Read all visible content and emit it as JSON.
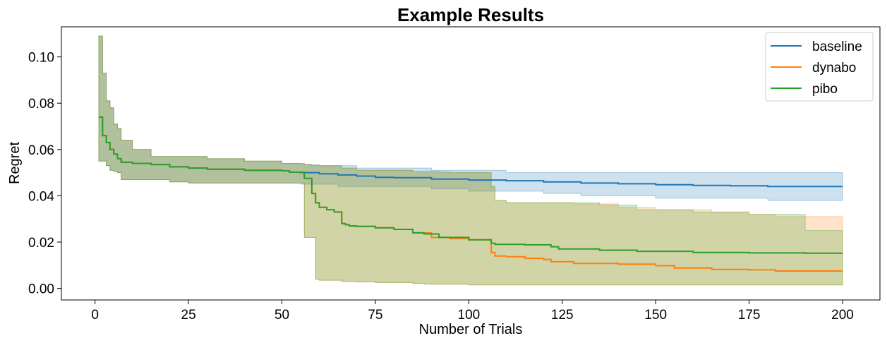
{
  "chart_data": {
    "type": "line",
    "title": "Example Results",
    "xlabel": "Number of Trials",
    "ylabel": "Regret",
    "xlim": [
      -9,
      210
    ],
    "ylim": [
      -0.005,
      0.113
    ],
    "xticks": [
      0,
      25,
      50,
      75,
      100,
      125,
      150,
      175,
      200
    ],
    "yticks": [
      0.0,
      0.02,
      0.04,
      0.06,
      0.08,
      0.1
    ],
    "ytick_labels": [
      "0.00",
      "0.02",
      "0.04",
      "0.06",
      "0.08",
      "0.10"
    ],
    "grid": false,
    "legend_position": "top-right",
    "step": true,
    "series": [
      {
        "name": "baseline",
        "color": "#1f77b4",
        "x": [
          1,
          2,
          3,
          4,
          5,
          6,
          7,
          10,
          15,
          20,
          25,
          30,
          40,
          50,
          52,
          55,
          60,
          65,
          70,
          75,
          80,
          90,
          100,
          110,
          120,
          130,
          140,
          150,
          160,
          170,
          180,
          190,
          200
        ],
        "y": [
          0.074,
          0.066,
          0.063,
          0.06,
          0.058,
          0.056,
          0.0545,
          0.054,
          0.0535,
          0.0525,
          0.052,
          0.0515,
          0.051,
          0.0508,
          0.0502,
          0.05,
          0.0495,
          0.049,
          0.0485,
          0.048,
          0.0478,
          0.0472,
          0.0468,
          0.0465,
          0.046,
          0.0455,
          0.0452,
          0.0448,
          0.0445,
          0.0443,
          0.044,
          0.044,
          0.044
        ],
        "lower": [
          0.055,
          0.055,
          0.053,
          0.051,
          0.0505,
          0.05,
          0.047,
          0.047,
          0.047,
          0.046,
          0.0455,
          0.0455,
          0.0455,
          0.0455,
          0.0455,
          0.045,
          0.045,
          0.044,
          0.044,
          0.044,
          0.044,
          0.043,
          0.042,
          0.042,
          0.041,
          0.04,
          0.04,
          0.039,
          0.039,
          0.039,
          0.038,
          0.038,
          0.038
        ],
        "upper": [
          0.109,
          0.093,
          0.081,
          0.078,
          0.071,
          0.069,
          0.064,
          0.06,
          0.057,
          0.057,
          0.057,
          0.056,
          0.055,
          0.054,
          0.054,
          0.0535,
          0.053,
          0.053,
          0.052,
          0.052,
          0.052,
          0.051,
          0.051,
          0.05,
          0.05,
          0.05,
          0.05,
          0.05,
          0.05,
          0.05,
          0.05,
          0.05,
          0.05
        ]
      },
      {
        "name": "dynabo",
        "color": "#ff7f0e",
        "x": [
          1,
          2,
          3,
          4,
          5,
          6,
          7,
          10,
          15,
          20,
          25,
          30,
          40,
          50,
          52,
          56,
          58,
          59,
          60,
          62,
          64,
          66,
          67,
          68,
          70,
          75,
          80,
          85,
          90,
          95,
          100,
          106,
          107,
          110,
          115,
          120,
          122,
          128,
          140,
          150,
          155,
          165,
          175,
          182,
          200
        ],
        "y": [
          0.074,
          0.066,
          0.063,
          0.06,
          0.058,
          0.056,
          0.0545,
          0.054,
          0.0535,
          0.0525,
          0.052,
          0.0515,
          0.051,
          0.0508,
          0.0502,
          0.0475,
          0.041,
          0.037,
          0.035,
          0.034,
          0.033,
          0.028,
          0.0275,
          0.027,
          0.0268,
          0.0262,
          0.0255,
          0.024,
          0.022,
          0.0215,
          0.021,
          0.0155,
          0.014,
          0.0137,
          0.013,
          0.0125,
          0.0115,
          0.0108,
          0.0105,
          0.0098,
          0.0088,
          0.0082,
          0.008,
          0.0075,
          0.0075
        ],
        "lower": [
          0.055,
          0.055,
          0.053,
          0.051,
          0.0505,
          0.05,
          0.047,
          0.047,
          0.047,
          0.046,
          0.0455,
          0.0455,
          0.0455,
          0.0455,
          0.0455,
          0.022,
          0.022,
          0.004,
          0.0035,
          0.0035,
          0.0035,
          0.003,
          0.003,
          0.003,
          0.0028,
          0.0025,
          0.0025,
          0.0022,
          0.0018,
          0.0018,
          0.0015,
          0.0015,
          0.0015,
          0.0015,
          0.0015,
          0.0015,
          0.0015,
          0.0015,
          0.0015,
          0.0015,
          0.0015,
          0.0015,
          0.0015,
          0.0015,
          0.0015
        ],
        "upper": [
          0.109,
          0.093,
          0.081,
          0.078,
          0.071,
          0.069,
          0.064,
          0.06,
          0.057,
          0.057,
          0.057,
          0.056,
          0.055,
          0.054,
          0.054,
          0.0535,
          0.053,
          0.053,
          0.053,
          0.053,
          0.053,
          0.052,
          0.052,
          0.052,
          0.051,
          0.051,
          0.051,
          0.0505,
          0.0505,
          0.05,
          0.05,
          0.044,
          0.038,
          0.037,
          0.037,
          0.037,
          0.037,
          0.0365,
          0.035,
          0.034,
          0.034,
          0.033,
          0.032,
          0.031,
          0.031
        ]
      },
      {
        "name": "pibo",
        "color": "#2ca02c",
        "x": [
          1,
          2,
          3,
          4,
          5,
          6,
          7,
          10,
          15,
          20,
          25,
          30,
          40,
          50,
          52,
          56,
          58,
          59,
          60,
          62,
          64,
          66,
          67,
          68,
          70,
          75,
          80,
          85,
          88,
          92,
          100,
          106,
          107,
          110,
          115,
          122,
          124,
          135,
          145,
          160,
          175,
          190,
          200
        ],
        "y": [
          0.074,
          0.066,
          0.063,
          0.06,
          0.058,
          0.056,
          0.0545,
          0.054,
          0.0535,
          0.0525,
          0.052,
          0.0515,
          0.051,
          0.0508,
          0.0502,
          0.0475,
          0.041,
          0.037,
          0.035,
          0.034,
          0.033,
          0.028,
          0.0275,
          0.027,
          0.0268,
          0.0262,
          0.0255,
          0.024,
          0.0235,
          0.022,
          0.021,
          0.0195,
          0.019,
          0.019,
          0.0188,
          0.018,
          0.017,
          0.0165,
          0.016,
          0.0155,
          0.0153,
          0.0152,
          0.0152
        ],
        "lower": [
          0.055,
          0.055,
          0.053,
          0.051,
          0.0505,
          0.05,
          0.047,
          0.047,
          0.047,
          0.046,
          0.0455,
          0.0455,
          0.0455,
          0.0455,
          0.0455,
          0.022,
          0.022,
          0.004,
          0.0035,
          0.0035,
          0.0035,
          0.003,
          0.003,
          0.003,
          0.0028,
          0.0025,
          0.0025,
          0.0022,
          0.0018,
          0.0018,
          0.0015,
          0.0015,
          0.0015,
          0.0015,
          0.0015,
          0.0015,
          0.0015,
          0.0015,
          0.0015,
          0.0015,
          0.0015,
          0.0015,
          0.0015
        ],
        "upper": [
          0.109,
          0.093,
          0.081,
          0.078,
          0.071,
          0.069,
          0.064,
          0.06,
          0.057,
          0.057,
          0.057,
          0.056,
          0.055,
          0.054,
          0.054,
          0.0535,
          0.053,
          0.053,
          0.053,
          0.053,
          0.053,
          0.052,
          0.052,
          0.052,
          0.051,
          0.051,
          0.051,
          0.0505,
          0.0505,
          0.05,
          0.05,
          0.044,
          0.038,
          0.037,
          0.037,
          0.037,
          0.037,
          0.036,
          0.034,
          0.033,
          0.032,
          0.025,
          0.023
        ]
      }
    ]
  }
}
